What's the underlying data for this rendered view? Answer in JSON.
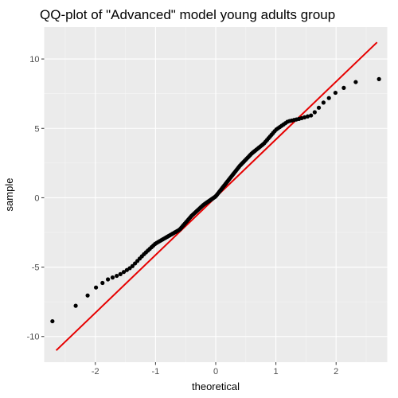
{
  "chart_data": {
    "type": "scatter",
    "title": "QQ-plot of \"Advanced\" model young adults group",
    "xlabel": "theoretical",
    "ylabel": "sample",
    "xlim": [
      -2.85,
      2.85
    ],
    "ylim": [
      -11.85,
      12.3
    ],
    "x_ticks": [
      -2,
      -1,
      0,
      1,
      2
    ],
    "y_ticks": [
      -10,
      -5,
      0,
      5,
      10
    ],
    "x_tick_labels": [
      "-2",
      "-1",
      "0",
      "1",
      "2"
    ],
    "y_tick_labels": [
      "-10",
      "-5",
      "0",
      "5",
      "10"
    ],
    "grid": true,
    "legend": "none",
    "colors": {
      "panel": "#ebebeb",
      "grid_major": "#ffffff",
      "grid_minor": "#f5f5f5",
      "points": "#000000",
      "reference_line": "#e60000"
    },
    "points_n": 150,
    "quantile_knots": {
      "theoretical": [
        -2.66,
        -2.36,
        -2.2,
        -2.0,
        -1.8,
        -1.6,
        -1.4,
        -1.2,
        -1.0,
        -0.8,
        -0.6,
        -0.4,
        -0.2,
        0.0,
        0.2,
        0.4,
        0.6,
        0.8,
        1.0,
        1.2,
        1.4,
        1.6,
        1.8,
        2.0,
        2.2,
        2.36,
        2.66
      ],
      "sample": [
        -8.9,
        -7.9,
        -7.35,
        -6.5,
        -5.9,
        -5.55,
        -5.0,
        -4.1,
        -3.3,
        -2.8,
        -2.3,
        -1.3,
        -0.5,
        0.1,
        1.2,
        2.3,
        3.2,
        3.9,
        4.9,
        5.5,
        5.7,
        5.95,
        6.9,
        7.6,
        8.1,
        8.4,
        8.55
      ]
    },
    "reference_line": {
      "theoretical": [
        -2.65,
        2.68
      ],
      "sample": [
        -11.0,
        11.2
      ]
    }
  }
}
